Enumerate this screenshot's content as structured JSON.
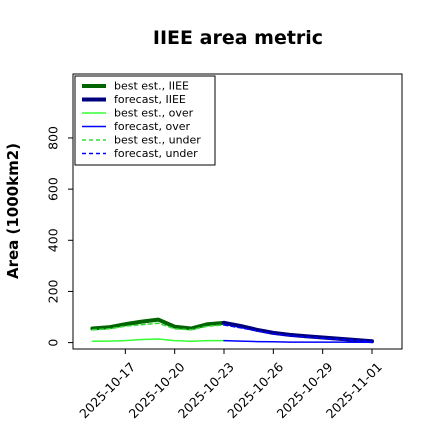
{
  "chart_data": {
    "type": "line",
    "title": "IIEE area metric",
    "xlabel": "",
    "ylabel": "Area (1000km2)",
    "ylim": [
      -25,
      1050
    ],
    "xlim": [
      "2025-10-14",
      "2025-11-01"
    ],
    "y_ticks": [
      0,
      200,
      400,
      600,
      800
    ],
    "x_ticks": [
      "2025-10-17",
      "2025-10-20",
      "2025-10-23",
      "2025-10-26",
      "2025-10-29",
      "2025-11-01"
    ],
    "highlighted_tick": "2025-10-23",
    "highlight_color": "#2e8b2e",
    "grid": false,
    "legend_position": "top-left",
    "series": [
      {
        "name": "best est., IIEE",
        "color": "#006400",
        "style": "solid",
        "weight": "thick",
        "x": [
          "2025-10-15",
          "2025-10-16",
          "2025-10-17",
          "2025-10-18",
          "2025-10-19",
          "2025-10-20",
          "2025-10-21",
          "2025-10-22",
          "2025-10-23"
        ],
        "y": [
          55,
          60,
          72,
          82,
          90,
          62,
          55,
          72,
          77
        ]
      },
      {
        "name": "forecast, IIEE",
        "color": "#00007f",
        "style": "solid",
        "weight": "thick",
        "x": [
          "2025-10-23",
          "2025-10-24",
          "2025-10-25",
          "2025-10-26",
          "2025-10-27",
          "2025-10-28",
          "2025-10-29",
          "2025-10-30",
          "2025-10-31",
          "2025-11-01"
        ],
        "y": [
          77,
          65,
          50,
          38,
          30,
          25,
          20,
          15,
          10,
          5
        ]
      },
      {
        "name": "best est., over",
        "color": "#33ff33",
        "style": "solid",
        "weight": "thin",
        "x": [
          "2025-10-15",
          "2025-10-16",
          "2025-10-17",
          "2025-10-18",
          "2025-10-19",
          "2025-10-20",
          "2025-10-21",
          "2025-10-22",
          "2025-10-23"
        ],
        "y": [
          5,
          6,
          8,
          12,
          14,
          8,
          5,
          8,
          8
        ]
      },
      {
        "name": "forecast, over",
        "color": "#0000ff",
        "style": "solid",
        "weight": "thin",
        "x": [
          "2025-10-23",
          "2025-10-24",
          "2025-10-25",
          "2025-10-26",
          "2025-10-27",
          "2025-10-28",
          "2025-10-29",
          "2025-10-30",
          "2025-10-31",
          "2025-11-01"
        ],
        "y": [
          8,
          6,
          4,
          3,
          2,
          2,
          2,
          2,
          1,
          1
        ]
      },
      {
        "name": "best est., under",
        "color": "#33dd33",
        "style": "dashed",
        "weight": "thin",
        "x": [
          "2025-10-15",
          "2025-10-16",
          "2025-10-17",
          "2025-10-18",
          "2025-10-19",
          "2025-10-20",
          "2025-10-21",
          "2025-10-22",
          "2025-10-23"
        ],
        "y": [
          50,
          54,
          64,
          70,
          76,
          54,
          50,
          64,
          69
        ]
      },
      {
        "name": "forecast, under",
        "color": "#0000ff",
        "style": "dashed",
        "weight": "thin",
        "x": [
          "2025-10-23",
          "2025-10-24",
          "2025-10-25",
          "2025-10-26",
          "2025-10-27",
          "2025-10-28",
          "2025-10-29",
          "2025-10-30",
          "2025-10-31",
          "2025-11-01"
        ],
        "y": [
          69,
          58,
          46,
          34,
          27,
          22,
          17,
          13,
          9,
          4
        ]
      }
    ]
  }
}
